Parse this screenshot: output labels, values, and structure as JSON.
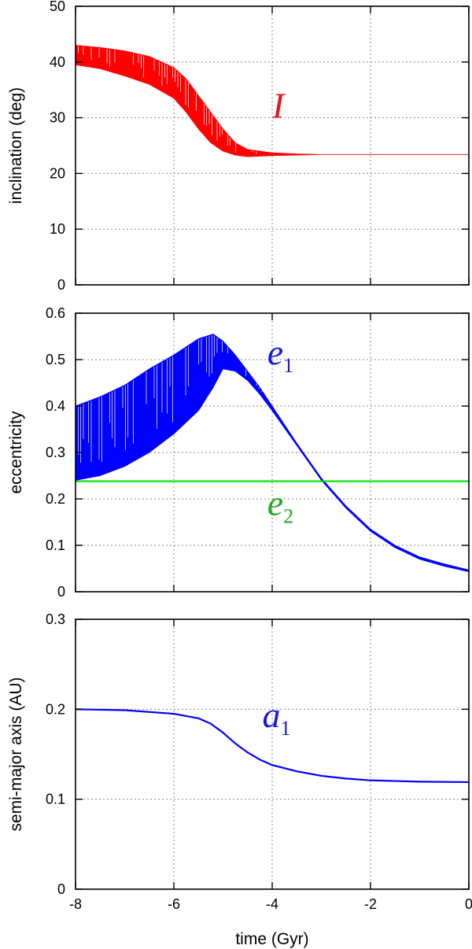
{
  "chart_data": [
    {
      "type": "line",
      "ylabel": "inclination (deg)",
      "xlabel": "",
      "xlim": [
        -8,
        0
      ],
      "ylim": [
        0,
        50
      ],
      "yticks": [
        "0",
        "10",
        "20",
        "30",
        "40",
        "50"
      ],
      "xticks": [
        -8,
        -6,
        -4,
        -2,
        0
      ],
      "grid": true,
      "series": [
        {
          "name": "I",
          "color": "#ff0000",
          "x": [
            -8,
            -7.5,
            -7,
            -6.5,
            -6,
            -5.75,
            -5.5,
            -5.25,
            -5,
            -4.75,
            -4.5,
            -4.25,
            -4,
            -3.5,
            -3,
            -2,
            -1,
            0
          ],
          "y_upper": [
            43,
            42.6,
            42,
            41,
            39,
            37,
            34,
            31,
            28,
            25.5,
            24.3,
            24,
            23.7,
            23.5,
            23.4,
            23.4,
            23.4,
            23.4
          ],
          "y_lower": [
            39.5,
            38.8,
            37.5,
            36,
            33.5,
            31,
            28,
            25.5,
            24,
            23.3,
            23,
            23.1,
            23.2,
            23.3,
            23.4,
            23.4,
            23.4,
            23.4
          ]
        }
      ],
      "annotation": {
        "text": "I",
        "color": "#e8171d",
        "x": -4,
        "y": 30
      }
    },
    {
      "type": "line",
      "ylabel": "eccentricity",
      "xlabel": "",
      "xlim": [
        -8,
        0
      ],
      "ylim": [
        0,
        0.6
      ],
      "yticks": [
        "0",
        "0.1",
        "0.2",
        "0.3",
        "0.4",
        "0.5",
        "0.6"
      ],
      "xticks": [
        -8,
        -6,
        -4,
        -2,
        0
      ],
      "grid": true,
      "series": [
        {
          "name": "e1",
          "color": "#0000ff",
          "x": [
            -8,
            -7.5,
            -7,
            -6.5,
            -6,
            -5.5,
            -5.2,
            -5,
            -4.75,
            -4.5,
            -4.25,
            -4,
            -3.5,
            -3,
            -2.5,
            -2,
            -1.5,
            -1,
            -0.5,
            0
          ],
          "y_upper": [
            0.4,
            0.42,
            0.445,
            0.48,
            0.51,
            0.545,
            0.555,
            0.54,
            0.51,
            0.475,
            0.44,
            0.4,
            0.32,
            0.245,
            0.185,
            0.135,
            0.1,
            0.075,
            0.06,
            0.047
          ],
          "y_lower": [
            0.24,
            0.25,
            0.27,
            0.3,
            0.34,
            0.39,
            0.44,
            0.48,
            0.475,
            0.455,
            0.425,
            0.39,
            0.315,
            0.24,
            0.18,
            0.13,
            0.095,
            0.07,
            0.055,
            0.043
          ]
        },
        {
          "name": "e2",
          "color": "#00dd00",
          "x": [
            -8,
            0
          ],
          "y": [
            0.238,
            0.238
          ]
        }
      ],
      "annotations": [
        {
          "text": "e",
          "sub": "1",
          "color": "#1a1adb",
          "x": -4.1,
          "y": 0.49
        },
        {
          "text": "e",
          "sub": "2",
          "color": "#22a82a",
          "x": -4.1,
          "y": 0.165
        }
      ]
    },
    {
      "type": "line",
      "ylabel": "semi-major axis (AU)",
      "xlabel": "time (Gyr)",
      "xlim": [
        -8,
        0
      ],
      "ylim": [
        0,
        0.3
      ],
      "yticks": [
        "0",
        "0.1",
        "0.2",
        "0.3"
      ],
      "xticks": [
        "-8",
        "-6",
        "-4",
        "-2",
        "0"
      ],
      "grid": true,
      "series": [
        {
          "name": "a1",
          "color": "#0000ff",
          "x": [
            -8,
            -7,
            -6,
            -5.5,
            -5.25,
            -5,
            -4.75,
            -4.5,
            -4.25,
            -4,
            -3.5,
            -3,
            -2.5,
            -2,
            -1,
            0
          ],
          "y": [
            0.2,
            0.199,
            0.195,
            0.19,
            0.184,
            0.174,
            0.162,
            0.152,
            0.144,
            0.138,
            0.131,
            0.126,
            0.123,
            0.121,
            0.1195,
            0.119
          ]
        }
      ],
      "annotation": {
        "text": "a",
        "sub": "1",
        "color": "#1a1adb",
        "x": -4.2,
        "y": 0.18
      }
    }
  ]
}
